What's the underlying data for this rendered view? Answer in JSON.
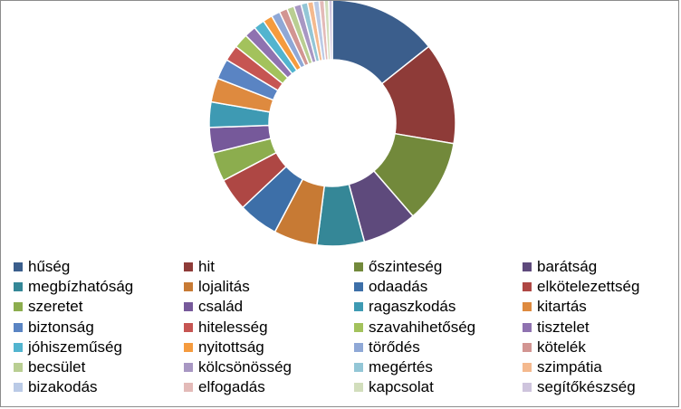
{
  "chart_data": {
    "type": "pie",
    "variant": "doughnut",
    "title": "",
    "legend_position": "bottom",
    "categories": [
      "hűség",
      "hit",
      "őszinteség",
      "barátság",
      "megbízhatóság",
      "lojalitás",
      "odaadás",
      "elkötelezettség",
      "szeretet",
      "család",
      "ragaszkodás",
      "kitartás",
      "biztonság",
      "hitelesség",
      "szavahihetőség",
      "tisztelet",
      "jóhiszeműség",
      "nyitottság",
      "törődés",
      "kötelék",
      "becsület",
      "kölcsönösség",
      "megértés",
      "szimpátia",
      "bizakodás",
      "elfogadás",
      "kapcsolat",
      "segítőkészség"
    ],
    "values": [
      15.0,
      14.0,
      11.5,
      7.5,
      6.5,
      6.0,
      5.5,
      4.5,
      4.0,
      3.5,
      3.5,
      3.3,
      2.8,
      2.2,
      2.0,
      1.6,
      1.5,
      1.3,
      1.2,
      1.1,
      1.0,
      1.0,
      0.9,
      0.8,
      0.8,
      0.7,
      0.6,
      0.5
    ],
    "colors": [
      "#3B5E8C",
      "#8E3B38",
      "#72893B",
      "#5E4A7C",
      "#358797",
      "#C77A34",
      "#3D6FA8",
      "#AE4744",
      "#8CAD4E",
      "#76599A",
      "#3E9AB3",
      "#DE8A3F",
      "#5A84C3",
      "#C65552",
      "#A3C25C",
      "#8F72B0",
      "#52B4CF",
      "#F59B3E",
      "#8FA8D6",
      "#D29592",
      "#B9CE92",
      "#A897C3",
      "#93C6D6",
      "#F4B98E",
      "#BACAE6",
      "#E3BAB8",
      "#D2DEBC",
      "#CEC4DD"
    ]
  }
}
